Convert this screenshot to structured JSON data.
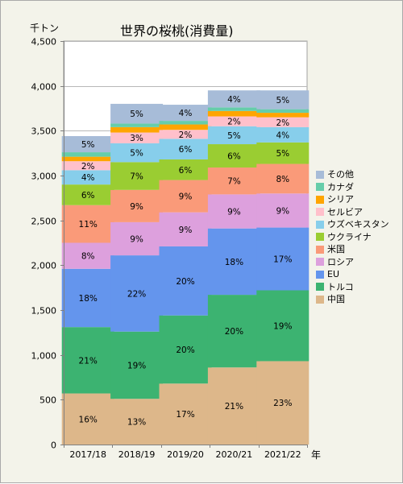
{
  "chart_data": {
    "type": "bar",
    "stacked": true,
    "title": "世界の桜桃(消費量)",
    "y_unit": "千トン",
    "x_unit": "年",
    "ylim": [
      0,
      4500
    ],
    "yticks": [
      0,
      500,
      1000,
      1500,
      2000,
      2500,
      3000,
      3500,
      4000,
      4500
    ],
    "ytick_labels": [
      "0",
      "500",
      "1,000",
      "1,500",
      "2,000",
      "2,500",
      "3,000",
      "3,500",
      "4,000",
      "4,500"
    ],
    "grid": true,
    "legend_position": "right",
    "categories": [
      "2017/18",
      "2018/19",
      "2019/20",
      "2020/21",
      "2021/22"
    ],
    "series": [
      {
        "name": "中国",
        "color": "#ddb78a",
        "values": [
          570,
          510,
          680,
          860,
          930
        ],
        "labels": [
          "16%",
          "13%",
          "17%",
          "21%",
          "23%"
        ]
      },
      {
        "name": "トルコ",
        "color": "#3cb371",
        "values": [
          740,
          750,
          760,
          810,
          790
        ],
        "labels": [
          "21%",
          "19%",
          "20%",
          "20%",
          "19%"
        ]
      },
      {
        "name": "EU",
        "color": "#6495ed",
        "values": [
          650,
          850,
          770,
          740,
          700
        ],
        "labels": [
          "18%",
          "22%",
          "20%",
          "18%",
          "17%"
        ]
      },
      {
        "name": "ロシア",
        "color": "#dda0dd",
        "values": [
          290,
          370,
          380,
          380,
          380
        ],
        "labels": [
          "8%",
          "9%",
          "9%",
          "9%",
          "9%"
        ]
      },
      {
        "name": "米国",
        "color": "#fa9a79",
        "values": [
          420,
          360,
          360,
          300,
          330
        ],
        "labels": [
          "11%",
          "9%",
          "9%",
          "7%",
          "8%"
        ]
      },
      {
        "name": "ウクライナ",
        "color": "#9acd32",
        "values": [
          230,
          310,
          230,
          260,
          240
        ],
        "labels": [
          "6%",
          "7%",
          "6%",
          "6%",
          "5%"
        ]
      },
      {
        "name": "ウズベキスタン",
        "color": "#87ceeb",
        "values": [
          160,
          210,
          230,
          200,
          170
        ],
        "labels": [
          "4%",
          "5%",
          "6%",
          "5%",
          "4%"
        ]
      },
      {
        "name": "セルビア",
        "color": "#ffc0cb",
        "values": [
          100,
          120,
          100,
          110,
          110
        ],
        "labels": [
          "2%",
          "3%",
          "2%",
          "2%",
          "2%"
        ]
      },
      {
        "name": "シリア",
        "color": "#ffa500",
        "values": [
          50,
          60,
          60,
          60,
          50
        ],
        "labels": [
          "",
          "",
          "",
          "",
          ""
        ]
      },
      {
        "name": "カナダ",
        "color": "#66cdaa",
        "values": [
          50,
          40,
          40,
          40,
          40
        ],
        "labels": [
          "",
          "",
          "",
          "",
          ""
        ]
      },
      {
        "name": "その他",
        "color": "#a7bcd8",
        "values": [
          180,
          220,
          180,
          190,
          210
        ],
        "labels": [
          "5%",
          "5%",
          "4%",
          "4%",
          "5%"
        ]
      }
    ]
  }
}
